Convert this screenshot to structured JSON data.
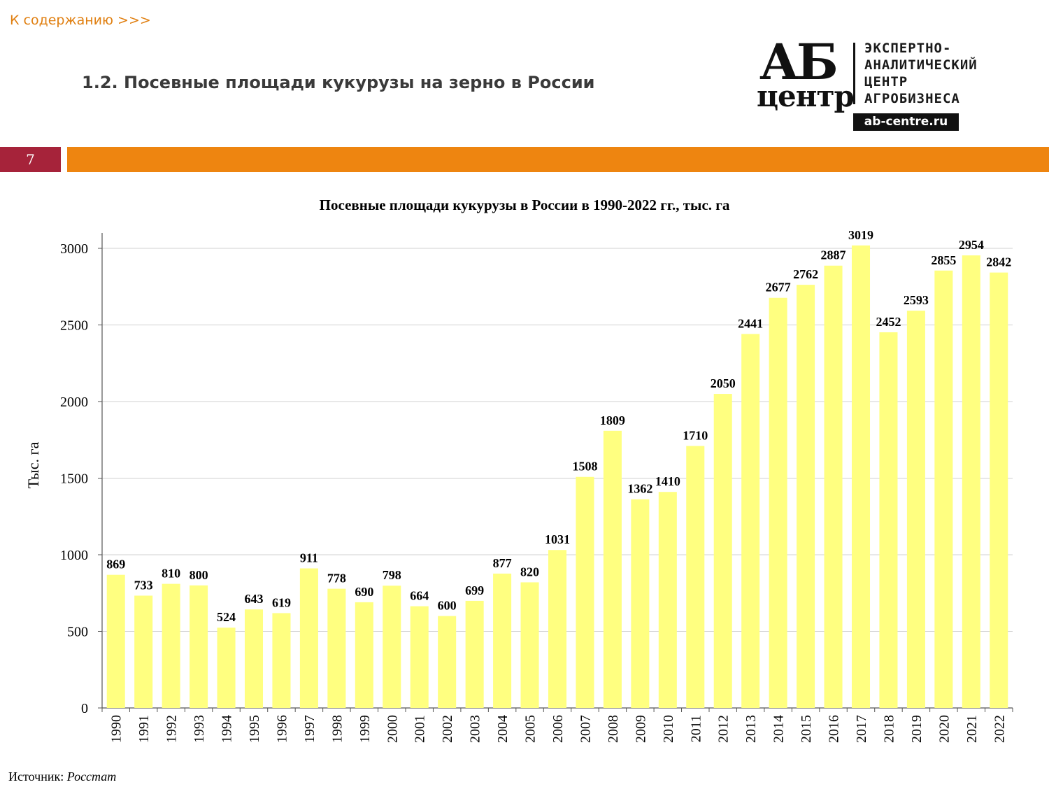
{
  "header": {
    "toc_link": "К содержанию >>>",
    "section_title": "1.2. Посевные площади кукурузы на зерно в России"
  },
  "logo": {
    "ab": "АБ",
    "centre": "центр",
    "line1": "ЭКСПЕРТНО-",
    "line2": "АНАЛИТИЧЕСКИЙ",
    "line3": "ЦЕНТР",
    "line4": "АГРОБИЗНЕСА",
    "url": "ab-centre.ru"
  },
  "page_number": "7",
  "colors": {
    "accent_orange": "#ee8510",
    "badge_red": "#a6233a",
    "bar_fill": "#ffff80",
    "link_orange": "#e07f10"
  },
  "source": {
    "label": "Источник:",
    "value": "Росстат"
  },
  "chart_data": {
    "type": "bar",
    "title": "Посевные площади кукурузы в России в 1990-2022 гг., тыс. га",
    "xlabel": "",
    "ylabel": "Тыс.  га",
    "ylim": [
      0,
      3000
    ],
    "yticks": [
      0,
      500,
      1000,
      1500,
      2000,
      2500,
      3000
    ],
    "grid": true,
    "categories": [
      "1990",
      "1991",
      "1992",
      "1993",
      "1994",
      "1995",
      "1996",
      "1997",
      "1998",
      "1999",
      "2000",
      "2001",
      "2002",
      "2003",
      "2004",
      "2005",
      "2006",
      "2007",
      "2008",
      "2009",
      "2010",
      "2011",
      "2012",
      "2013",
      "2014",
      "2015",
      "2016",
      "2017",
      "2018",
      "2019",
      "2020",
      "2021",
      "2022"
    ],
    "values": [
      869,
      733,
      810,
      800,
      524,
      643,
      619,
      911,
      778,
      690,
      798,
      664,
      600,
      699,
      877,
      820,
      1031,
      1508,
      1809,
      1362,
      1410,
      1710,
      2050,
      2441,
      2677,
      2762,
      2887,
      3019,
      2452,
      2593,
      2855,
      2954,
      2842
    ]
  }
}
